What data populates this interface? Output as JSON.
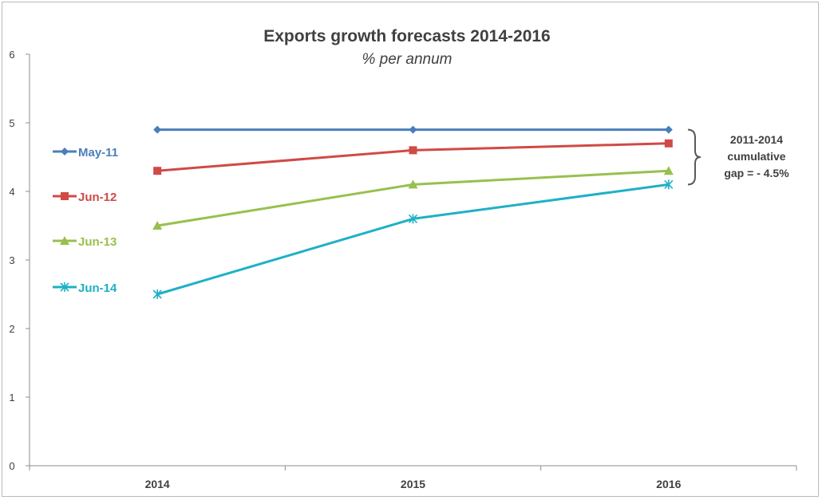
{
  "chart_data": {
    "type": "line",
    "title": "Exports growth forecasts 2014-2016",
    "subtitle": "% per annum",
    "categories": [
      "2014",
      "2015",
      "2016"
    ],
    "ylim": [
      0,
      6
    ],
    "yticks": [
      "0",
      "1",
      "2",
      "3",
      "4",
      "5",
      "6"
    ],
    "grid": false,
    "legend_position": "left",
    "series": [
      {
        "name": "May-11",
        "values": [
          4.9,
          4.9,
          4.9
        ],
        "color": "#4a7ebb",
        "marker": "diamond"
      },
      {
        "name": "Jun-12",
        "values": [
          4.3,
          4.6,
          4.7
        ],
        "color": "#d04a46",
        "marker": "square"
      },
      {
        "name": "Jun-13",
        "values": [
          3.5,
          4.1,
          4.3
        ],
        "color": "#98c04e",
        "marker": "triangle"
      },
      {
        "name": "Jun-14",
        "values": [
          2.5,
          3.6,
          4.1
        ],
        "color": "#1fb0c6",
        "marker": "star"
      }
    ],
    "annotation": {
      "lines": [
        "2011-2014",
        "cumulative",
        "gap = - 4.5%"
      ],
      "color": "#404040"
    }
  }
}
